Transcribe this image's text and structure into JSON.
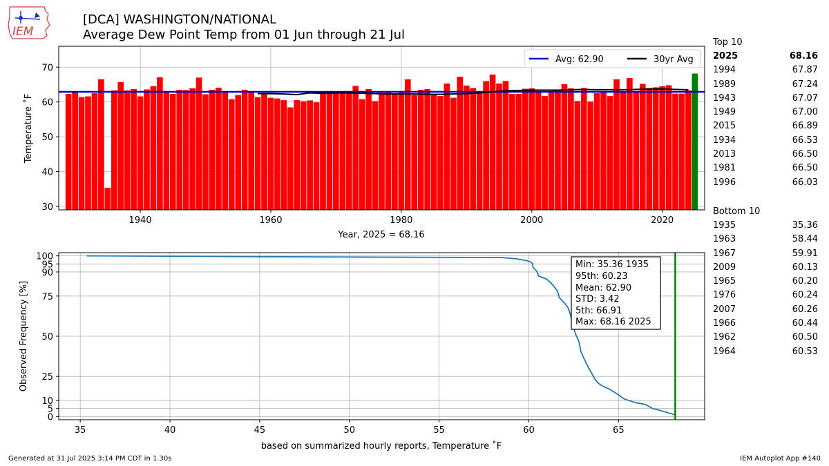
{
  "header": {
    "logo_text": "IEM",
    "title_line1": "[DCA] WASHINGTON/NATIONAL",
    "title_line2": "Average Dew Point Temp from 01 Jun through 21 Jul"
  },
  "top10": {
    "heading": "Top 10",
    "rows": [
      {
        "year": "2025",
        "value": "68.16"
      },
      {
        "year": "1994",
        "value": "67.87"
      },
      {
        "year": "1989",
        "value": "67.24"
      },
      {
        "year": "1943",
        "value": "67.07"
      },
      {
        "year": "1949",
        "value": "67.00"
      },
      {
        "year": "2015",
        "value": "66.89"
      },
      {
        "year": "1934",
        "value": "66.53"
      },
      {
        "year": "2013",
        "value": "66.50"
      },
      {
        "year": "1981",
        "value": "66.50"
      },
      {
        "year": "1996",
        "value": "66.03"
      }
    ]
  },
  "bottom10": {
    "heading": "Bottom 10",
    "rows": [
      {
        "year": "1935",
        "value": "35.36"
      },
      {
        "year": "1963",
        "value": "58.44"
      },
      {
        "year": "1967",
        "value": "59.91"
      },
      {
        "year": "2009",
        "value": "60.13"
      },
      {
        "year": "1965",
        "value": "60.20"
      },
      {
        "year": "1976",
        "value": "60.24"
      },
      {
        "year": "2007",
        "value": "60.26"
      },
      {
        "year": "1966",
        "value": "60.44"
      },
      {
        "year": "1962",
        "value": "60.50"
      },
      {
        "year": "1964",
        "value": "60.53"
      }
    ]
  },
  "footer": {
    "left": "Generated at 31 Jul 2025 3:14 PM CDT in 1.30s",
    "right": "IEM Autoplot App #140"
  },
  "chart_data": [
    {
      "type": "bar",
      "ylabel": "Temperature ˚F",
      "xlabel": "Year, 2025 = 68.16",
      "xlim": [
        1927.5,
        2026.5
      ],
      "ylim": [
        29,
        76
      ],
      "xticks": [
        1940,
        1960,
        1980,
        2000,
        2020
      ],
      "yticks": [
        30,
        40,
        50,
        60,
        70
      ],
      "grid": true,
      "legend_position": "top-right",
      "bar_color": "#ff0000",
      "highlight_color": "#008000",
      "highlight_year": 2025,
      "avg": {
        "label": "Avg: 62.90",
        "value": 62.9,
        "color": "#0000cc"
      },
      "avg30": {
        "label": "30yr Avg",
        "color": "#000000",
        "years": [
          1958,
          1960,
          1962,
          1964,
          1966,
          1968,
          1970,
          1972,
          1974,
          1976,
          1978,
          1980,
          1982,
          1984,
          1986,
          1988,
          1990,
          1992,
          1994,
          1996,
          1998,
          2000,
          2002,
          2004,
          2006,
          2008,
          2010,
          2012,
          2014,
          2016,
          2018,
          2020,
          2022,
          2024
        ],
        "values": [
          62.4,
          62.4,
          62.3,
          62.1,
          62.6,
          62.5,
          62.6,
          62.6,
          62.5,
          62.4,
          62.3,
          62.3,
          62.3,
          62.2,
          62.2,
          62.3,
          62.4,
          62.6,
          62.9,
          63.2,
          63.3,
          63.4,
          63.4,
          63.4,
          63.5,
          63.6,
          63.5,
          63.5,
          63.5,
          63.6,
          63.7,
          63.7,
          63.6,
          63.5
        ]
      },
      "years": [
        1929,
        1930,
        1931,
        1932,
        1933,
        1934,
        1935,
        1936,
        1937,
        1938,
        1939,
        1940,
        1941,
        1942,
        1943,
        1944,
        1945,
        1946,
        1947,
        1948,
        1949,
        1950,
        1951,
        1952,
        1953,
        1954,
        1955,
        1956,
        1957,
        1958,
        1959,
        1960,
        1961,
        1962,
        1963,
        1964,
        1965,
        1966,
        1967,
        1968,
        1969,
        1970,
        1971,
        1972,
        1973,
        1974,
        1975,
        1976,
        1977,
        1978,
        1979,
        1980,
        1981,
        1982,
        1983,
        1984,
        1985,
        1986,
        1987,
        1988,
        1989,
        1990,
        1991,
        1992,
        1993,
        1994,
        1995,
        1996,
        1997,
        1998,
        1999,
        2000,
        2001,
        2002,
        2003,
        2004,
        2005,
        2006,
        2007,
        2008,
        2009,
        2010,
        2011,
        2012,
        2013,
        2014,
        2015,
        2016,
        2017,
        2018,
        2019,
        2020,
        2021,
        2022,
        2023,
        2024,
        2025
      ],
      "values": [
        62.3,
        62.8,
        61.4,
        61.6,
        62.5,
        66.53,
        35.36,
        63.3,
        65.7,
        63.3,
        63.7,
        61.6,
        63.6,
        64.5,
        67.07,
        62.9,
        62.3,
        63.5,
        63.4,
        63.9,
        67.0,
        62.2,
        63.5,
        64.1,
        63.1,
        60.8,
        62.0,
        63.5,
        62.7,
        61.4,
        62.5,
        61.2,
        61.0,
        60.5,
        58.44,
        60.53,
        60.2,
        60.44,
        59.91,
        62.9,
        62.4,
        62.5,
        62.4,
        62.6,
        64.6,
        60.8,
        63.7,
        60.24,
        62.7,
        62.8,
        62.4,
        62.7,
        66.5,
        62.0,
        63.5,
        63.7,
        62.3,
        61.7,
        65.3,
        61.2,
        67.24,
        64.7,
        64.0,
        62.8,
        66.0,
        67.87,
        65.3,
        66.03,
        62.3,
        62.3,
        63.8,
        63.9,
        63.1,
        61.7,
        62.8,
        63.5,
        65.1,
        63.9,
        60.26,
        64.0,
        60.13,
        62.5,
        62.9,
        61.7,
        66.5,
        62.8,
        66.89,
        62.8,
        65.2,
        64.0,
        64.2,
        64.5,
        64.8,
        62.4,
        62.4,
        63.3,
        68.16
      ]
    },
    {
      "type": "line",
      "xlabel": "based on summarized hourly reports, Temperature ˚F",
      "ylabel": "Observed Frequency [%]",
      "xlim": [
        33.8,
        69.8
      ],
      "ylim": [
        -2,
        102
      ],
      "xticks": [
        35,
        40,
        45,
        50,
        55,
        60,
        65
      ],
      "yticks": [
        0,
        5,
        10,
        25,
        50,
        75,
        90,
        95,
        100
      ],
      "grid": true,
      "line_color": "#1f77b4",
      "vline": {
        "x": 68.16,
        "color": "#008000"
      },
      "x": [
        35.36,
        40,
        45,
        50,
        55,
        58.44,
        59.3,
        59.91,
        60.13,
        60.2,
        60.24,
        60.26,
        60.44,
        60.5,
        60.53,
        61.0,
        61.2,
        61.4,
        61.6,
        61.7,
        62.0,
        62.2,
        62.3,
        62.4,
        62.5,
        62.6,
        62.8,
        62.9,
        63.1,
        63.3,
        63.5,
        63.7,
        63.9,
        64.1,
        64.5,
        65.0,
        65.3,
        66.0,
        66.5,
        66.9,
        67.24,
        67.87,
        68.16
      ],
      "y": [
        100,
        99.8,
        99.5,
        99.3,
        99.1,
        99.0,
        98.2,
        97.0,
        96.0,
        95.2,
        93.0,
        92.5,
        90.5,
        89.0,
        87.5,
        85.5,
        83.5,
        81.0,
        78.0,
        74.0,
        70.5,
        67.5,
        64.0,
        59.5,
        55.0,
        51.5,
        46.5,
        40.5,
        35.5,
        31.0,
        27.0,
        23.0,
        20.5,
        19.0,
        17.0,
        13.5,
        11.0,
        8.5,
        7.5,
        5.0,
        4.0,
        2.0,
        1.0
      ]
    }
  ],
  "stats_box": {
    "lines": [
      "Min: 35.36 1935",
      "95th: 60.23",
      "Mean: 62.90",
      "STD: 3.42",
      "5th: 66.91",
      "Max: 68.16 2025"
    ]
  }
}
